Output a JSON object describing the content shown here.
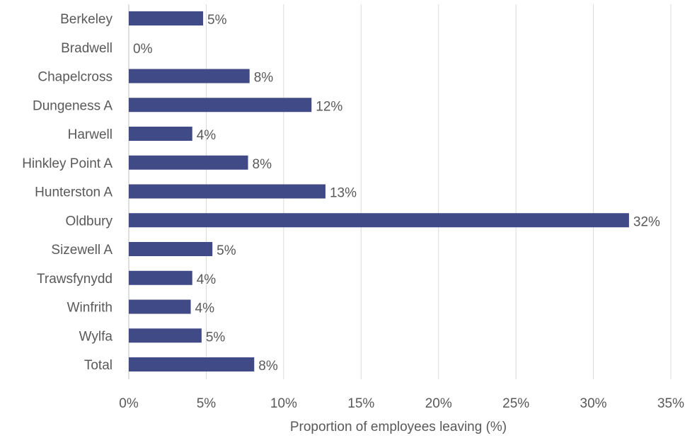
{
  "chart_data": {
    "type": "bar",
    "orientation": "horizontal",
    "categories": [
      "Berkeley",
      "Bradwell",
      "Chapelcross",
      "Dungeness A",
      "Harwell",
      "Hinkley Point A",
      "Hunterston A",
      "Oldbury",
      "Sizewell A",
      "Trawsfynydd",
      "Winfrith",
      "Wylfa",
      "Total"
    ],
    "values": [
      4.8,
      0,
      7.8,
      11.8,
      4.1,
      7.7,
      12.7,
      32.3,
      5.4,
      4.1,
      4.0,
      4.7,
      8.1
    ],
    "data_labels": [
      "5%",
      "0%",
      "8%",
      "12%",
      "4%",
      "8%",
      "13%",
      "32%",
      "5%",
      "4%",
      "4%",
      "5%",
      "8%"
    ],
    "xlabel": "Proportion of employees leaving (%)",
    "xlim": [
      0,
      35
    ],
    "x_ticks": [
      0,
      5,
      10,
      15,
      20,
      25,
      30,
      35
    ],
    "x_tick_labels": [
      "0%",
      "5%",
      "10%",
      "15%",
      "20%",
      "25%",
      "30%",
      "35%"
    ],
    "grid": "vertical",
    "bar_color": "#404a86"
  }
}
